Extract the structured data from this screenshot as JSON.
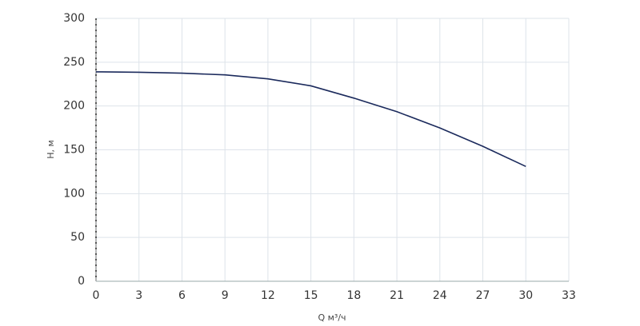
{
  "chart_data": {
    "type": "line",
    "x_label": "Q м³/ч",
    "y_label": "H, м",
    "x": [
      0,
      3,
      6,
      9,
      12,
      15,
      18,
      21,
      24,
      27,
      30
    ],
    "series": [
      {
        "color": "#1b2a5c",
        "values": [
          239,
          238.5,
          237.5,
          235.5,
          231,
          223,
          209,
          193.5,
          175,
          154,
          131
        ]
      }
    ],
    "xlim": [
      0,
      33
    ],
    "xticks": [
      0,
      3,
      6,
      9,
      12,
      15,
      18,
      21,
      24,
      27,
      30,
      33
    ],
    "ylim": [
      0,
      300
    ],
    "yticks": [
      0,
      50,
      100,
      150,
      200,
      250,
      300
    ],
    "grid": true
  }
}
